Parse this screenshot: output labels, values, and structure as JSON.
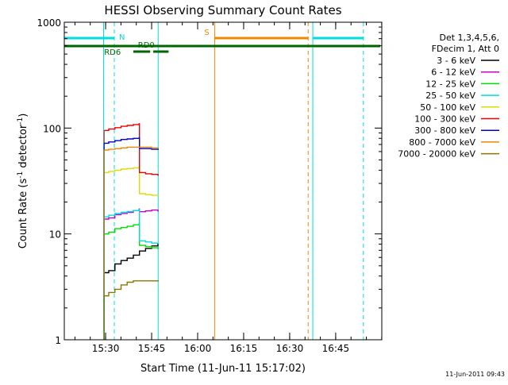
{
  "chart_data": {
    "type": "line",
    "title": "HESSI Observing Summary Count Rates",
    "xlabel": "Start Time (11-Jun-11 15:17:02)",
    "ylabel_main": "Count Rate (s",
    "ylabel_sup1": "-1",
    "ylabel_mid": " detector",
    "ylabel_sup2": "-1",
    "ylabel_end": ")",
    "y_scale": "log",
    "ylim": [
      1,
      1000
    ],
    "xlim_minutes": [
      -0.5,
      103
    ],
    "x_ticks": [
      {
        "label": "15:30",
        "min": 12.97
      },
      {
        "label": "15:45",
        "min": 27.97
      },
      {
        "label": "16:00",
        "min": 42.97
      },
      {
        "label": "16:15",
        "min": 57.97
      },
      {
        "label": "16:30",
        "min": 72.97
      },
      {
        "label": "16:45",
        "min": 87.97
      }
    ],
    "y_ticks": [
      {
        "label": "1",
        "value": 1
      },
      {
        "label": "10",
        "value": 10
      },
      {
        "label": "100",
        "value": 100
      },
      {
        "label": "1000",
        "value": 1000
      }
    ],
    "legend": {
      "header": [
        "Det 1,3,4,5,6,",
        "FDecim 1, Att 0"
      ],
      "position": "right"
    },
    "series": [
      {
        "name": "3 - 6 keV",
        "color": "#000000",
        "x": [
          12.5,
          14,
          16,
          18,
          20,
          22,
          24,
          26,
          28,
          30
        ],
        "y": [
          4.3,
          4.5,
          5.2,
          5.6,
          5.9,
          6.3,
          6.9,
          7.3,
          7.7,
          8.0
        ]
      },
      {
        "name": "6 - 12 keV",
        "color": "#cc00cc",
        "x": [
          12.5,
          14,
          16,
          18,
          20,
          22,
          23.9,
          24,
          26,
          28,
          30
        ],
        "y": [
          13.8,
          14.2,
          15.2,
          15.6,
          16,
          16.6,
          17.2,
          16.2,
          16.5,
          16.8,
          16.5
        ]
      },
      {
        "name": "12 - 25 keV",
        "color": "#00dd00",
        "x": [
          12.5,
          14,
          16,
          18,
          20,
          22,
          23.9,
          24,
          26,
          28,
          30
        ],
        "y": [
          10,
          10.4,
          11.2,
          11.5,
          11.8,
          12.2,
          12.6,
          7.8,
          7.6,
          7.4,
          7.3
        ]
      },
      {
        "name": "25 - 50 keV",
        "color": "#00dddd",
        "x": [
          12.5,
          14,
          16,
          18,
          20,
          22,
          23.9,
          24,
          26,
          28,
          30
        ],
        "y": [
          14.5,
          15,
          15.6,
          16,
          16.3,
          16.6,
          16.9,
          8.6,
          8.4,
          8.2,
          8.1
        ]
      },
      {
        "name": "50 - 100 keV",
        "color": "#dddd00",
        "x": [
          12.5,
          14,
          16,
          18,
          20,
          22,
          23.9,
          24,
          26,
          28,
          30
        ],
        "y": [
          38,
          39,
          40,
          41,
          41.5,
          42,
          43,
          24,
          23.5,
          23.2,
          23
        ]
      },
      {
        "name": "100 - 300 keV",
        "color": "#ee0000",
        "x": [
          12.5,
          14,
          16,
          18,
          20,
          22,
          23.9,
          24,
          26,
          28,
          30
        ],
        "y": [
          95,
          98,
          101,
          104,
          106,
          108,
          110,
          38,
          37,
          36.5,
          36
        ]
      },
      {
        "name": "300 - 800 keV",
        "color": "#0000cc",
        "x": [
          12.5,
          14,
          16,
          18,
          20,
          22,
          23.9,
          24,
          26,
          28,
          30
        ],
        "y": [
          72,
          74,
          76,
          78,
          79,
          80,
          81,
          64,
          64,
          63,
          63
        ]
      },
      {
        "name": "800 - 7000 keV",
        "color": "#ee8800",
        "x": [
          12.5,
          14,
          16,
          18,
          20,
          22,
          24,
          26,
          28,
          30
        ],
        "y": [
          62,
          63,
          64,
          65,
          66,
          66,
          66,
          66,
          65,
          65
        ]
      },
      {
        "name": "7000 - 20000 keV",
        "color": "#887700",
        "x": [
          12.5,
          14,
          16,
          18,
          20,
          22,
          24,
          26,
          28,
          30
        ],
        "y": [
          2.6,
          2.8,
          3.0,
          3.3,
          3.5,
          3.6,
          3.6,
          3.6,
          3.6,
          3.6
        ]
      }
    ],
    "flags": [
      {
        "label": "N",
        "color": "#00dddd",
        "row": "top",
        "segments": [
          [
            -0.5,
            15.8
          ],
          [
            80.5,
            97
          ]
        ]
      },
      {
        "label": "S",
        "color": "#ee8800",
        "row": "top",
        "segments": [
          [
            48.5,
            79.0
          ]
        ]
      },
      {
        "label": "RD0",
        "color": "#006600",
        "row": "middle",
        "segments": [
          [
            -0.5,
            102.5
          ]
        ]
      },
      {
        "label": "RD6",
        "color": "#006600",
        "row": "lower",
        "segments": [
          [
            22,
            27.5
          ],
          [
            28.5,
            33.5
          ]
        ]
      }
    ],
    "markers": [
      {
        "color": "#00dddd",
        "style": "solid",
        "x": 12.3
      },
      {
        "color": "#00dddd",
        "style": "dashed",
        "x": 15.8
      },
      {
        "color": "#00dddd",
        "style": "solid",
        "x": 30.1
      },
      {
        "color": "#ee8800",
        "style": "solid",
        "x": 48.5
      },
      {
        "color": "#ee8800",
        "style": "dashed",
        "x": 79.0
      },
      {
        "color": "#00dddd",
        "style": "solid",
        "x": 80.5
      },
      {
        "color": "#00dddd",
        "style": "dashed",
        "x": 97.0
      }
    ],
    "timestamp": "11-Jun-2011 09:43"
  }
}
